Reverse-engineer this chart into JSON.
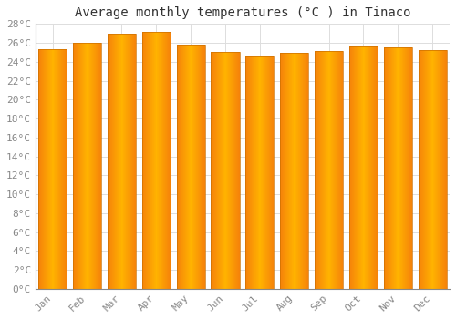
{
  "title": "Average monthly temperatures (°C ) in Tinaco",
  "months": [
    "Jan",
    "Feb",
    "Mar",
    "Apr",
    "May",
    "Jun",
    "Jul",
    "Aug",
    "Sep",
    "Oct",
    "Nov",
    "Dec"
  ],
  "values": [
    25.3,
    26.0,
    27.0,
    27.2,
    25.8,
    25.0,
    24.7,
    24.9,
    25.1,
    25.6,
    25.5,
    25.2
  ],
  "bar_color_center": "#FFB300",
  "bar_color_edge": "#F5820A",
  "ylim": [
    0,
    28
  ],
  "ytick_step": 2,
  "background_color": "#FFFFFF",
  "grid_color": "#DDDDDD",
  "title_fontsize": 10,
  "tick_fontsize": 8,
  "font_family": "monospace"
}
